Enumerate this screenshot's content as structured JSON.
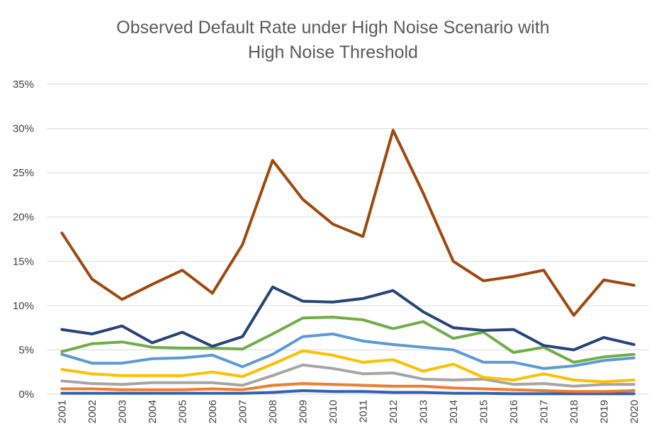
{
  "chart_data": {
    "type": "line",
    "title_lines": [
      "Observed Default Rate under High Noise Scenario with",
      "High Noise Threshold"
    ],
    "xlabel": "",
    "ylabel": "",
    "ylim": [
      0,
      35
    ],
    "y_ticks": [
      0,
      5,
      10,
      15,
      20,
      25,
      30,
      35
    ],
    "y_tick_labels": [
      "0%",
      "5%",
      "10%",
      "15%",
      "20%",
      "25%",
      "30%",
      "35%"
    ],
    "grid": true,
    "legend": "none",
    "categories": [
      "2001",
      "2002",
      "2003",
      "2004",
      "2005",
      "2006",
      "2007",
      "2008",
      "2009",
      "2010",
      "2011",
      "2012",
      "2013",
      "2014",
      "2015",
      "2016",
      "2017",
      "2018",
      "2019",
      "2020"
    ],
    "series": [
      {
        "color": "#325fb8",
        "values": [
          0.1,
          0.1,
          0.1,
          0.1,
          0.1,
          0.1,
          0.1,
          0.2,
          0.4,
          0.3,
          0.3,
          0.2,
          0.2,
          0.1,
          0.1,
          0.05,
          0.05,
          0.05,
          0.05,
          0.05
        ]
      },
      {
        "color": "#ed7d31",
        "values": [
          0.6,
          0.6,
          0.5,
          0.5,
          0.5,
          0.6,
          0.5,
          1.0,
          1.2,
          1.1,
          1.0,
          0.9,
          0.9,
          0.7,
          0.6,
          0.5,
          0.4,
          0.3,
          0.3,
          0.4
        ]
      },
      {
        "color": "#a5a5a5",
        "values": [
          1.5,
          1.2,
          1.1,
          1.3,
          1.3,
          1.3,
          1.0,
          2.1,
          3.3,
          2.9,
          2.3,
          2.4,
          1.7,
          1.6,
          1.7,
          1.1,
          1.2,
          0.9,
          1.1,
          1.1
        ]
      },
      {
        "color": "#ffc000",
        "values": [
          2.8,
          2.3,
          2.1,
          2.1,
          2.1,
          2.5,
          2.0,
          3.4,
          4.9,
          4.4,
          3.6,
          3.9,
          2.6,
          3.4,
          1.9,
          1.6,
          2.3,
          1.6,
          1.4,
          1.6
        ]
      },
      {
        "color": "#5b9bd5",
        "values": [
          4.5,
          3.5,
          3.5,
          4.0,
          4.1,
          4.4,
          3.1,
          4.5,
          6.5,
          6.8,
          6.0,
          5.6,
          5.3,
          5.0,
          3.6,
          3.6,
          2.9,
          3.2,
          3.8,
          4.1
        ]
      },
      {
        "color": "#70ad47",
        "values": [
          4.8,
          5.7,
          5.9,
          5.3,
          5.2,
          5.2,
          5.1,
          6.8,
          8.6,
          8.7,
          8.4,
          7.4,
          8.2,
          6.3,
          7.0,
          4.7,
          5.3,
          3.6,
          4.2,
          4.5
        ]
      },
      {
        "color": "#264478",
        "values": [
          7.3,
          6.8,
          7.7,
          5.8,
          7.0,
          5.4,
          6.5,
          12.1,
          10.5,
          10.4,
          10.8,
          11.7,
          9.3,
          7.5,
          7.2,
          7.3,
          5.5,
          5.0,
          6.4,
          5.6
        ]
      },
      {
        "color": "#9e480e",
        "values": [
          18.2,
          13.0,
          10.7,
          12.4,
          14.0,
          11.4,
          16.9,
          26.4,
          22.0,
          19.2,
          17.8,
          29.8,
          22.7,
          15.0,
          12.8,
          13.3,
          14.0,
          8.9,
          12.9,
          12.3
        ]
      }
    ]
  }
}
